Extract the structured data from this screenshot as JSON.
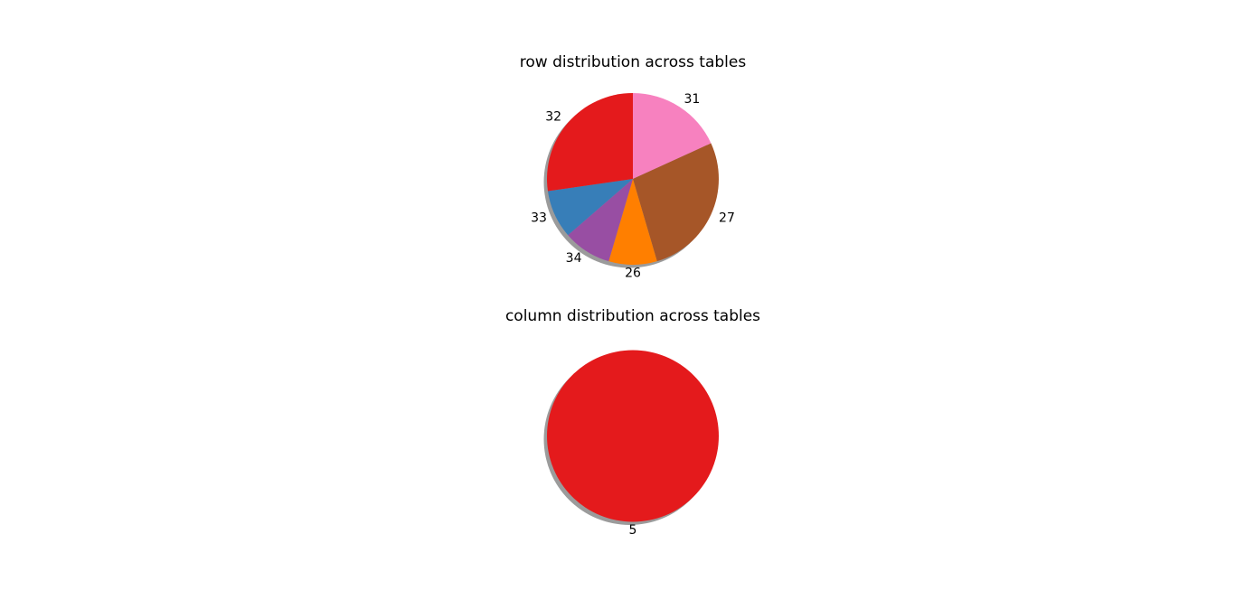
{
  "page": {
    "background_color": "#ffffff"
  },
  "chart_data": [
    {
      "type": "pie",
      "title": "row distribution across tables",
      "labels": [
        "31",
        "27",
        "26",
        "34",
        "33",
        "32"
      ],
      "values": [
        2,
        3,
        1,
        1,
        1,
        3
      ],
      "percentages": [
        18.2,
        27.3,
        9.1,
        9.1,
        9.1,
        27.3
      ],
      "colors": [
        "#f781bf",
        "#a65628",
        "#ff7f00",
        "#984ea3",
        "#377eb8",
        "#e41a1c"
      ],
      "direction": "clockwise",
      "start_angle": "top",
      "shadow": true,
      "shadow_color": "#9b9b9b",
      "label_distance": 1.1,
      "legend": "none"
    },
    {
      "type": "pie",
      "title": "column distribution across tables",
      "labels": [
        "5"
      ],
      "values": [
        1
      ],
      "percentages": [
        100
      ],
      "colors": [
        "#e41a1c"
      ],
      "direction": "clockwise",
      "start_angle": "top",
      "shadow": true,
      "shadow_color": "#9b9b9b",
      "label_distance": 1.1,
      "legend": "none"
    }
  ]
}
